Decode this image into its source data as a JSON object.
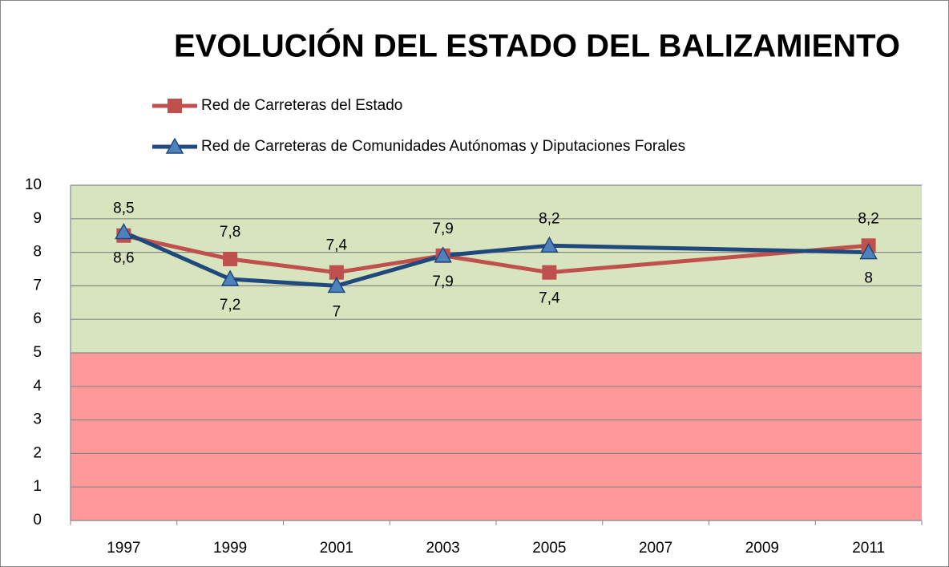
{
  "chart_data": {
    "type": "line",
    "title": "EVOLUCIÓN DEL ESTADO DEL BALIZAMIENTO",
    "x": [
      1997,
      1999,
      2001,
      2003,
      2005,
      2011
    ],
    "xlim": [
      1996,
      2012
    ],
    "xticks": [
      1997,
      1999,
      2001,
      2003,
      2005,
      2007,
      2009,
      2011
    ],
    "ylim": [
      0,
      10
    ],
    "yticks": [
      0,
      1,
      2,
      3,
      4,
      5,
      6,
      7,
      8,
      9,
      10
    ],
    "grid": true,
    "bands": [
      {
        "from": 5,
        "to": 10,
        "color": "#d7e4bd"
      },
      {
        "from": 0,
        "to": 5,
        "color": "#ff9999"
      }
    ],
    "series": [
      {
        "name": "Red de Carreteras del Estado",
        "color": "#c0504d",
        "marker": "square",
        "values": [
          8.5,
          7.8,
          7.4,
          7.9,
          7.4,
          8.2
        ],
        "value_labels": [
          "8,5",
          "7,8",
          "7,4",
          "7,9",
          "7,4",
          "8,2"
        ]
      },
      {
        "name": "Red de Carreteras de Comunidades Autónomas y Diputaciones Forales",
        "color": "#1f497d",
        "marker": "triangle",
        "values": [
          8.6,
          7.2,
          7,
          7.9,
          8.2,
          8
        ],
        "value_labels": [
          "8,6",
          "7,2",
          "7",
          "7,9",
          "8,2",
          "8"
        ]
      }
    ]
  }
}
